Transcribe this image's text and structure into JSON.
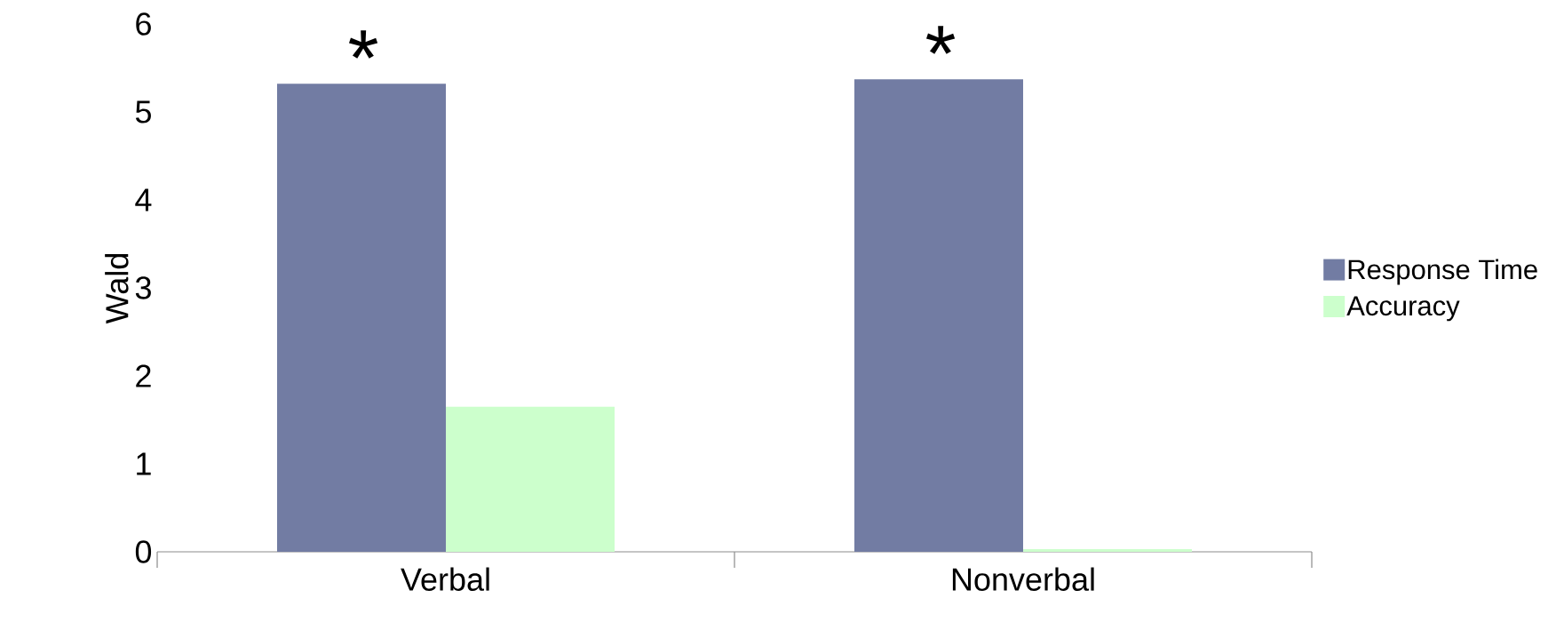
{
  "chart_data": {
    "type": "bar",
    "ylabel": "Wald",
    "categories": [
      "Verbal",
      "Nonverbal"
    ],
    "series": [
      {
        "name": "Response Time",
        "color": "#727ca3",
        "values": [
          5.32,
          5.37
        ]
      },
      {
        "name": "Accuracy",
        "color": "#ccffcc",
        "values": [
          1.65,
          0.03
        ]
      }
    ],
    "ylim": [
      0,
      6
    ],
    "yticks": [
      0,
      1,
      2,
      3,
      4,
      5,
      6
    ],
    "grid": false,
    "legend": "right",
    "annotations": [
      {
        "text": "*",
        "x": "Verbal",
        "y": 5.32
      },
      {
        "text": "*",
        "x": "Nonverbal",
        "y": 5.37
      }
    ]
  }
}
